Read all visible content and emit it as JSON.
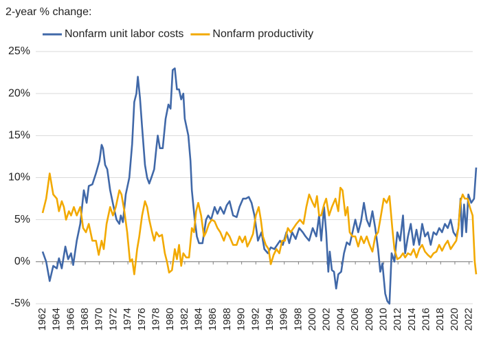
{
  "chart_data": {
    "type": "line",
    "subtitle": "2-year % change:",
    "xlim": [
      1962,
      2023
    ],
    "xticks": [
      1962,
      1964,
      1966,
      1968,
      1970,
      1972,
      1974,
      1976,
      1978,
      1980,
      1982,
      1984,
      1986,
      1988,
      1990,
      1992,
      1994,
      1996,
      1998,
      2000,
      2002,
      2004,
      2006,
      2008,
      2010,
      2012,
      2014,
      2016,
      2018,
      2020,
      2022
    ],
    "ylim": [
      -5,
      25
    ],
    "yticks": [
      {
        "value": -5,
        "label": "-5%"
      },
      {
        "value": 0,
        "label": "0%"
      },
      {
        "value": 5,
        "label": "5%"
      },
      {
        "value": 10,
        "label": "10%"
      },
      {
        "value": 15,
        "label": "15%"
      },
      {
        "value": 20,
        "label": "20%"
      },
      {
        "value": 25,
        "label": "25%"
      }
    ],
    "grid": true,
    "series": [
      {
        "name": "Nonfarm unit labor costs",
        "color": "#4068a8",
        "x": [
          1962.0,
          1962.5,
          1963.0,
          1963.5,
          1964.0,
          1964.3,
          1964.7,
          1965.2,
          1965.6,
          1966.0,
          1966.3,
          1966.8,
          1967.3,
          1967.8,
          1968.2,
          1968.5,
          1969.0,
          1969.5,
          1970.0,
          1970.3,
          1970.5,
          1970.8,
          1971.1,
          1971.5,
          1972.0,
          1972.4,
          1972.8,
          1973.0,
          1973.3,
          1973.7,
          1974.2,
          1974.6,
          1974.9,
          1975.2,
          1975.4,
          1975.7,
          1976.0,
          1976.4,
          1976.7,
          1977.0,
          1977.3,
          1977.7,
          1978.0,
          1978.2,
          1978.5,
          1978.9,
          1979.3,
          1979.7,
          1980.0,
          1980.3,
          1980.6,
          1980.9,
          1981.2,
          1981.5,
          1981.8,
          1982.0,
          1982.5,
          1982.8,
          1983.0,
          1983.4,
          1983.7,
          1984.0,
          1984.5,
          1985.0,
          1985.3,
          1985.7,
          1986.2,
          1986.6,
          1987.0,
          1987.5,
          1987.9,
          1988.3,
          1988.8,
          1989.3,
          1989.7,
          1990.2,
          1990.6,
          1991.0,
          1991.4,
          1991.8,
          1992.3,
          1992.8,
          1993.2,
          1993.7,
          1994.1,
          1994.6,
          1995.0,
          1995.4,
          1995.8,
          1996.3,
          1996.7,
          1997.1,
          1997.6,
          1998.1,
          1998.6,
          1999.0,
          1999.5,
          2000.0,
          2000.5,
          2000.9,
          2001.2,
          2001.6,
          2001.9,
          2002.2,
          2002.4,
          2002.7,
          2003.0,
          2003.3,
          2003.6,
          2004.0,
          2004.4,
          2004.8,
          2005.2,
          2005.6,
          2006.0,
          2006.4,
          2006.8,
          2007.2,
          2007.6,
          2008.0,
          2008.4,
          2008.8,
          2009.2,
          2009.5,
          2009.8,
          2010.2,
          2010.5,
          2010.8,
          2011.1,
          2011.5,
          2011.9,
          2012.3,
          2012.7,
          2013.0,
          2013.4,
          2013.8,
          2014.2,
          2014.6,
          2015.0,
          2015.4,
          2015.8,
          2016.2,
          2016.6,
          2017.0,
          2017.4,
          2017.8,
          2018.2,
          2018.6,
          2019.0,
          2019.4,
          2019.8,
          2020.2,
          2020.5,
          2020.8,
          2021.0,
          2021.3,
          2021.6,
          2021.9,
          2022.3,
          2022.7,
          2023.0
        ],
        "values": [
          1.2,
          0,
          -2.3,
          -0.5,
          -0.8,
          0.4,
          -0.8,
          1.8,
          0.3,
          1,
          -0.4,
          2.5,
          4.5,
          8.5,
          7,
          9,
          9.2,
          10.5,
          12,
          13.9,
          13.5,
          11.5,
          11,
          8.5,
          6.5,
          5,
          4.5,
          5.5,
          4.7,
          8,
          10,
          14,
          19,
          20,
          22,
          19.5,
          16,
          11.5,
          10,
          9.3,
          10,
          11,
          13.5,
          15,
          13.5,
          13.5,
          17,
          18.7,
          18.2,
          22.8,
          23,
          20.5,
          20.5,
          19.3,
          20,
          17,
          15,
          12,
          8.5,
          5,
          3,
          2.2,
          2.2,
          5,
          5.5,
          5,
          6.5,
          5.7,
          6.5,
          5.7,
          6.7,
          7.2,
          5.5,
          5.3,
          6.5,
          7.5,
          7.5,
          7.7,
          7,
          5.5,
          2.5,
          3.5,
          1.5,
          1,
          1.7,
          1.5,
          2,
          2.5,
          2,
          3.5,
          2.2,
          3.5,
          2.7,
          4,
          3.5,
          3,
          2.5,
          4,
          3,
          5.5,
          2.5,
          6.5,
          3.5,
          -1.2,
          1.2,
          -1,
          -1.2,
          -3.2,
          -1.5,
          -1.2,
          1,
          2.3,
          2,
          3.5,
          5,
          3.5,
          4.8,
          7,
          5,
          4.2,
          6,
          4,
          1.5,
          -1.2,
          -0.2,
          -3.8,
          -4.7,
          -5,
          1,
          0,
          3.5,
          2.5,
          5.5,
          1,
          3,
          4.5,
          2,
          3.8,
          2,
          4.5,
          3,
          3.5,
          2,
          3.5,
          3.2,
          4,
          3.5,
          4.5,
          4,
          5,
          3.5,
          3,
          4,
          7.5,
          3,
          6.8,
          3.5,
          8,
          7,
          7.5,
          11.2
        ]
      },
      {
        "name": "Nonfarm productivity",
        "color": "#f2a900",
        "x": [
          1962.0,
          1962.5,
          1963.0,
          1963.5,
          1964.0,
          1964.3,
          1964.7,
          1965.0,
          1965.3,
          1965.7,
          1966.0,
          1966.4,
          1966.8,
          1967.3,
          1967.7,
          1968.1,
          1968.5,
          1969.0,
          1969.5,
          1969.9,
          1970.3,
          1970.6,
          1971.0,
          1971.5,
          1971.9,
          1972.3,
          1972.8,
          1973.1,
          1973.5,
          1973.9,
          1974.3,
          1974.6,
          1974.9,
          1975.3,
          1975.6,
          1976.0,
          1976.4,
          1976.7,
          1977.0,
          1977.4,
          1977.7,
          1978.0,
          1978.4,
          1978.8,
          1979.2,
          1979.5,
          1979.8,
          1980.2,
          1980.6,
          1980.9,
          1981.2,
          1981.5,
          1981.8,
          1982.2,
          1982.6,
          1983.0,
          1983.3,
          1983.6,
          1983.9,
          1984.3,
          1984.7,
          1985.0,
          1985.4,
          1985.8,
          1986.2,
          1986.6,
          1987.0,
          1987.5,
          1987.9,
          1988.3,
          1988.8,
          1989.3,
          1989.7,
          1990.1,
          1990.5,
          1990.8,
          1991.2,
          1991.6,
          1992.0,
          1992.4,
          1992.7,
          1993.0,
          1993.4,
          1993.8,
          1994.1,
          1994.5,
          1994.9,
          1995.3,
          1995.7,
          1996.1,
          1996.5,
          1996.9,
          1997.3,
          1997.7,
          1998.2,
          1998.7,
          1999.1,
          1999.5,
          2000.0,
          2000.3,
          2000.6,
          2000.9,
          2001.2,
          2001.6,
          2001.9,
          2002.3,
          2002.7,
          2003.2,
          2003.6,
          2003.9,
          2004.2,
          2004.6,
          2004.9,
          2005.2,
          2005.6,
          2006.0,
          2006.4,
          2006.8,
          2007.2,
          2007.6,
          2008.0,
          2008.4,
          2008.8,
          2009.2,
          2009.6,
          2010.0,
          2010.4,
          2010.8,
          2011.2,
          2011.5,
          2011.9,
          2012.3,
          2012.7,
          2013.0,
          2013.4,
          2013.8,
          2014.2,
          2014.6,
          2015.0,
          2015.4,
          2015.8,
          2016.2,
          2016.6,
          2017.0,
          2017.4,
          2017.8,
          2018.2,
          2018.6,
          2019.0,
          2019.4,
          2019.8,
          2020.2,
          2020.5,
          2020.8,
          2021.1,
          2021.4,
          2021.8,
          2022.1,
          2022.5,
          2022.8,
          2023.0
        ],
        "values": [
          5.8,
          7.5,
          10.5,
          8,
          7.5,
          6,
          7.2,
          6.5,
          5,
          6,
          5.5,
          6.5,
          5.5,
          6.5,
          4,
          3.5,
          4.5,
          2.5,
          2.5,
          0.8,
          2.5,
          1.5,
          4.5,
          6.5,
          5.5,
          6.5,
          8.5,
          8,
          6,
          3.5,
          0,
          0.3,
          -1.5,
          1.5,
          3,
          5.5,
          7.2,
          6.5,
          5,
          3.5,
          2.5,
          3.5,
          3,
          3.2,
          1,
          0,
          -1.3,
          -1,
          1.5,
          0.3,
          2,
          -0.5,
          1,
          0.5,
          0.5,
          4,
          3.5,
          6,
          7,
          5.5,
          3,
          3.5,
          4.5,
          5,
          4.8,
          4,
          3.5,
          2.5,
          3.5,
          3,
          2,
          2,
          3,
          2.3,
          3,
          1.8,
          2.5,
          3.3,
          5.5,
          6.5,
          5,
          3,
          2,
          1.5,
          -0.3,
          0.8,
          1.5,
          1,
          2.5,
          2.5,
          4,
          3.5,
          4,
          4.5,
          5,
          4.5,
          6.5,
          8,
          7,
          6.5,
          7.8,
          5.5,
          5.5,
          6.8,
          7.5,
          5.5,
          6.5,
          7.5,
          6,
          8.8,
          8.5,
          5.5,
          6.5,
          3.5,
          3,
          3,
          1.8,
          3,
          2.2,
          3,
          2,
          1.2,
          3,
          3.5,
          5.5,
          7.5,
          7,
          7.8,
          4,
          1.5,
          0.3,
          0.5,
          1,
          0.5,
          1,
          0.8,
          1.5,
          0.5,
          1.5,
          2,
          1.2,
          0.8,
          0.5,
          1,
          1.2,
          2,
          1.3,
          2,
          2.5,
          1.5,
          2,
          2.5,
          4,
          7.2,
          8,
          7.5,
          7.5,
          6.5,
          5.5,
          0,
          -1.5
        ]
      }
    ]
  }
}
